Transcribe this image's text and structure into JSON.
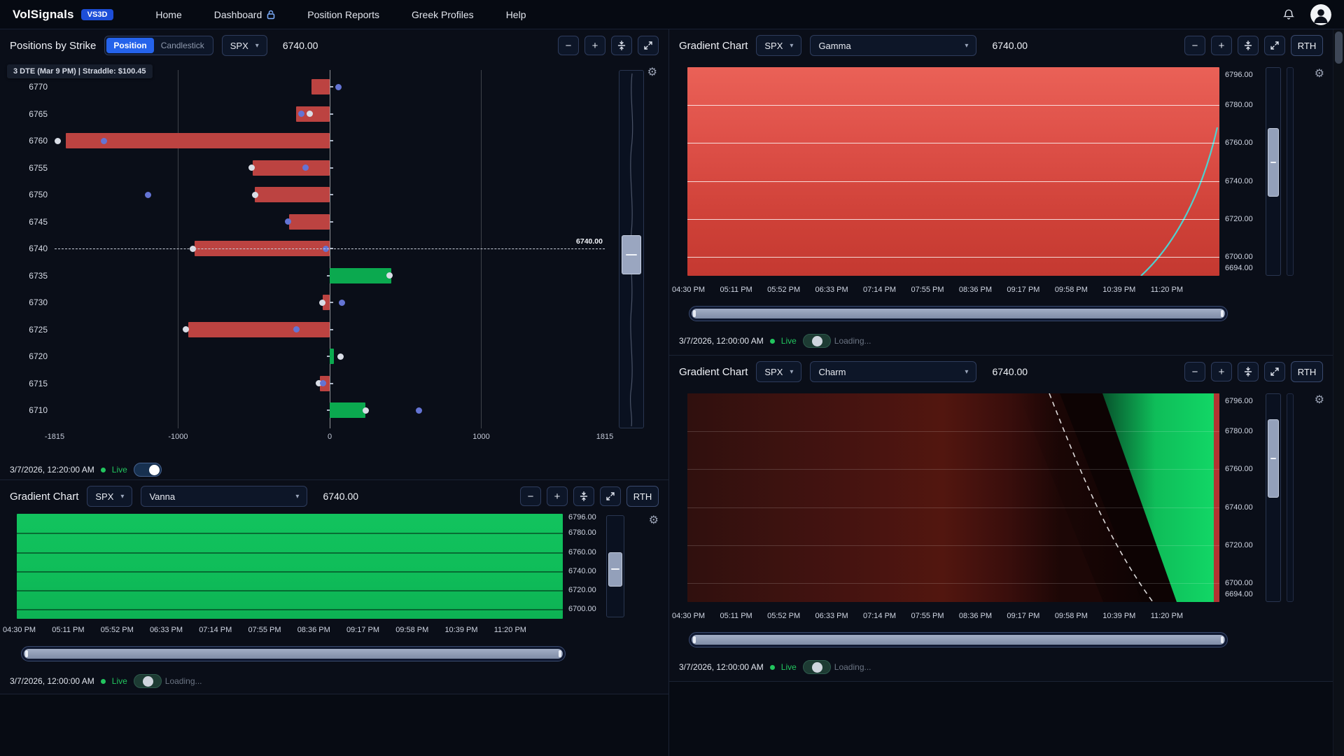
{
  "nav": {
    "brand": "VolSignals",
    "badge": "VS3D",
    "items": [
      {
        "label": "Home"
      },
      {
        "label": "Dashboard"
      },
      {
        "label": "Position Reports"
      },
      {
        "label": "Greek Profiles"
      },
      {
        "label": "Help"
      }
    ]
  },
  "icons": {
    "gear": "⚙",
    "chevron": "▾"
  },
  "controls": {
    "minus": "−",
    "plus": "+",
    "rth": "RTH"
  },
  "colors": {
    "accent": "#2563eb",
    "badge": "#1d4ed8",
    "red_bar": "#bc4341",
    "green_bar": "#0ba94f",
    "live_green": "#22c55e",
    "gamma_red": "#d84a3f",
    "vanna_green": "#0fbd59",
    "charm_green": "#0fd364",
    "cyan_line": "#4fd1cf"
  },
  "time_axis": [
    "04:30 PM",
    "05:11 PM",
    "05:52 PM",
    "06:33 PM",
    "07:14 PM",
    "07:55 PM",
    "08:36 PM",
    "09:17 PM",
    "09:58 PM",
    "10:39 PM",
    "11:20 PM"
  ],
  "positions": {
    "title": "Positions by Strike",
    "mode_position": "Position",
    "mode_candlestick": "Candlestick",
    "symbol": "SPX",
    "price": "6740.00",
    "subtitle": "3 DTE (Mar 9 PM)  |  Straddle: $100.45",
    "status": {
      "time": "3/7/2026, 12:20:00 AM",
      "live": "Live"
    },
    "chart_data": {
      "type": "bar",
      "orientation": "horizontal",
      "xlim": [
        -1815,
        1815
      ],
      "x_ticks": [
        -1815,
        -1000,
        0,
        1000,
        1815
      ],
      "spot": {
        "strike": 6740,
        "label": "6740.00"
      },
      "rows": [
        {
          "strike": 6770,
          "value": -120,
          "dots": [
            {
              "v": 60,
              "c": "blue"
            }
          ]
        },
        {
          "strike": 6765,
          "value": -220,
          "dots": [
            {
              "v": -185,
              "c": "blue"
            },
            {
              "v": -130,
              "c": "white"
            }
          ]
        },
        {
          "strike": 6760,
          "value": -1740,
          "dots": [
            {
              "v": -1795,
              "c": "white"
            },
            {
              "v": -1490,
              "c": "blue"
            }
          ]
        },
        {
          "strike": 6755,
          "value": -510,
          "dots": [
            {
              "v": -515,
              "c": "white"
            },
            {
              "v": -160,
              "c": "blue"
            }
          ]
        },
        {
          "strike": 6750,
          "value": -495,
          "dots": [
            {
              "v": -490,
              "c": "white"
            },
            {
              "v": -1200,
              "c": "blue"
            }
          ]
        },
        {
          "strike": 6745,
          "value": -270,
          "dots": [
            {
              "v": -275,
              "c": "blue"
            }
          ]
        },
        {
          "strike": 6740,
          "value": -890,
          "dots": [
            {
              "v": -905,
              "c": "white"
            },
            {
              "v": -25,
              "c": "blue"
            }
          ]
        },
        {
          "strike": 6735,
          "value": 405,
          "dots": [
            {
              "v": 395,
              "c": "white"
            }
          ]
        },
        {
          "strike": 6730,
          "value": -45,
          "dots": [
            {
              "v": -50,
              "c": "white"
            },
            {
              "v": 80,
              "c": "blue"
            }
          ]
        },
        {
          "strike": 6725,
          "value": -935,
          "dots": [
            {
              "v": -950,
              "c": "white"
            },
            {
              "v": -220,
              "c": "blue"
            }
          ]
        },
        {
          "strike": 6720,
          "value": 30,
          "dots": [
            {
              "v": 70,
              "c": "white"
            }
          ]
        },
        {
          "strike": 6715,
          "value": -65,
          "dots": [
            {
              "v": -70,
              "c": "white"
            },
            {
              "v": -45,
              "c": "blue"
            }
          ]
        },
        {
          "strike": 6710,
          "value": 235,
          "dots": [
            {
              "v": 240,
              "c": "white"
            },
            {
              "v": 590,
              "c": "blue"
            }
          ]
        }
      ]
    }
  },
  "vanna": {
    "title": "Gradient Chart",
    "symbol": "SPX",
    "metric": "Vanna",
    "price": "6740.00",
    "y_labels": [
      "6796.00",
      "6780.00",
      "6760.00",
      "6740.00",
      "6720.00",
      "6700.00"
    ],
    "status": {
      "time": "3/7/2026, 12:00:00 AM",
      "live": "Live",
      "loading": "Loading..."
    }
  },
  "gamma": {
    "title": "Gradient Chart",
    "symbol": "SPX",
    "metric": "Gamma",
    "price": "6740.00",
    "y_labels": [
      "6796.00",
      "6780.00",
      "6760.00",
      "6740.00",
      "6720.00",
      "6700.00",
      "6694.00"
    ],
    "status": {
      "time": "3/7/2026, 12:00:00 AM",
      "live": "Live",
      "loading": "Loading..."
    }
  },
  "charm": {
    "title": "Gradient Chart",
    "symbol": "SPX",
    "metric": "Charm",
    "price": "6740.00",
    "y_labels": [
      "6796.00",
      "6780.00",
      "6760.00",
      "6740.00",
      "6720.00",
      "6700.00",
      "6694.00"
    ],
    "status": {
      "time": "3/7/2026, 12:00:00 AM",
      "live": "Live",
      "loading": "Loading..."
    }
  }
}
